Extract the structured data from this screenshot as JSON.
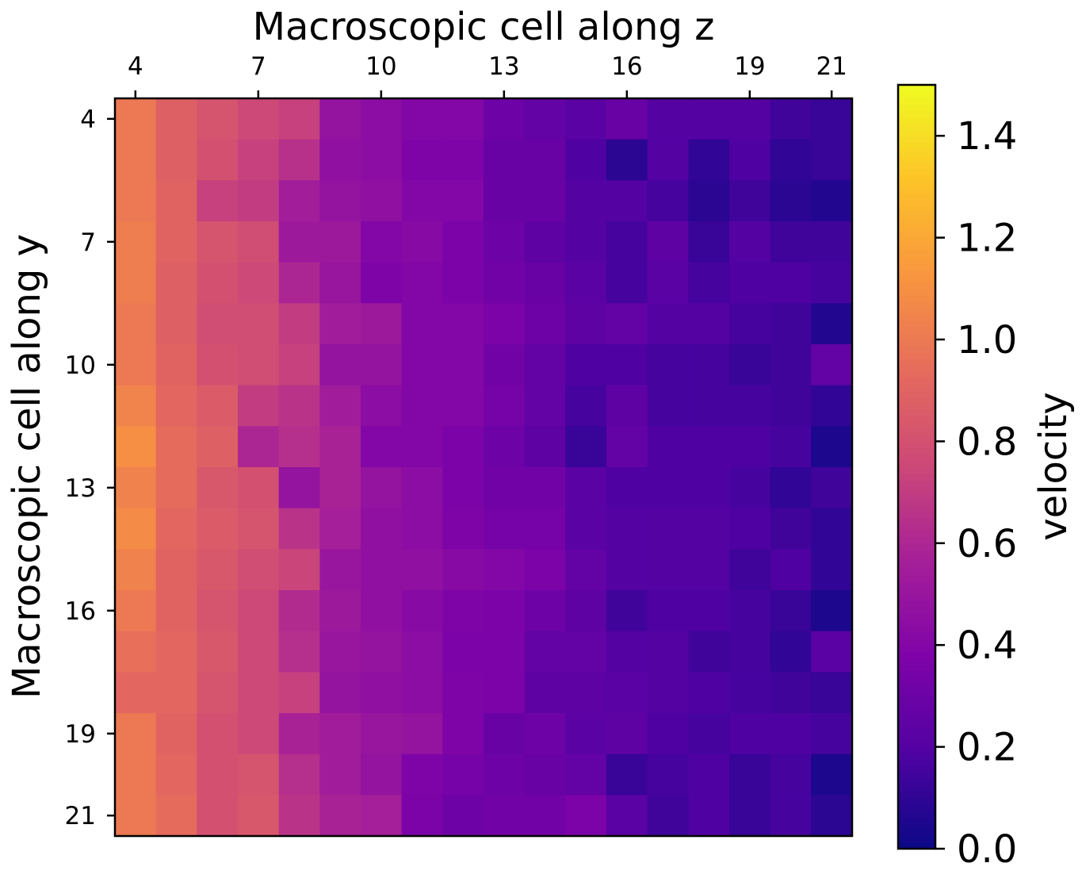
{
  "chart_data": {
    "type": "heatmap",
    "title": "",
    "xlabel": "Macroscopic cell along z",
    "ylabel": "Macroscopic cell along y",
    "x_range": [
      4,
      21
    ],
    "y_range": [
      4,
      21
    ],
    "x_ticks": [
      "4",
      "7",
      "10",
      "13",
      "16",
      "19",
      "21"
    ],
    "y_ticks": [
      "4",
      "7",
      "10",
      "13",
      "16",
      "19",
      "21"
    ],
    "x_axis_position": "top",
    "y_axis_inverted": true,
    "colormap": "plasma",
    "colorbar": {
      "label": "velocity",
      "range": [
        0.0,
        1.5
      ],
      "ticks": [
        "0.0",
        "0.2",
        "0.4",
        "0.6",
        "0.8",
        "1.0",
        "1.2",
        "1.4"
      ]
    },
    "values": [
      [
        1.0,
        0.88,
        0.82,
        0.76,
        0.72,
        0.48,
        0.44,
        0.4,
        0.4,
        0.3,
        0.26,
        0.22,
        0.28,
        0.2,
        0.2,
        0.2,
        0.14,
        0.12
      ],
      [
        1.0,
        0.88,
        0.8,
        0.72,
        0.65,
        0.46,
        0.44,
        0.38,
        0.38,
        0.28,
        0.28,
        0.18,
        0.08,
        0.2,
        0.1,
        0.18,
        0.1,
        0.12
      ],
      [
        1.0,
        0.9,
        0.72,
        0.7,
        0.55,
        0.48,
        0.46,
        0.4,
        0.4,
        0.28,
        0.28,
        0.2,
        0.2,
        0.16,
        0.08,
        0.14,
        0.08,
        0.06
      ],
      [
        1.02,
        0.9,
        0.82,
        0.78,
        0.52,
        0.52,
        0.4,
        0.42,
        0.36,
        0.3,
        0.24,
        0.2,
        0.16,
        0.24,
        0.12,
        0.2,
        0.14,
        0.14
      ],
      [
        1.02,
        0.88,
        0.8,
        0.76,
        0.6,
        0.5,
        0.38,
        0.4,
        0.36,
        0.32,
        0.28,
        0.22,
        0.16,
        0.22,
        0.16,
        0.18,
        0.18,
        0.16
      ],
      [
        1.0,
        0.88,
        0.78,
        0.78,
        0.7,
        0.54,
        0.52,
        0.4,
        0.4,
        0.36,
        0.3,
        0.24,
        0.26,
        0.2,
        0.2,
        0.16,
        0.14,
        0.06
      ],
      [
        1.0,
        0.9,
        0.8,
        0.78,
        0.72,
        0.48,
        0.48,
        0.4,
        0.4,
        0.32,
        0.26,
        0.18,
        0.18,
        0.16,
        0.16,
        0.12,
        0.14,
        0.26
      ],
      [
        1.05,
        0.92,
        0.86,
        0.7,
        0.66,
        0.54,
        0.44,
        0.4,
        0.4,
        0.34,
        0.26,
        0.16,
        0.24,
        0.16,
        0.16,
        0.16,
        0.14,
        0.1
      ],
      [
        1.1,
        0.94,
        0.88,
        0.6,
        0.64,
        0.58,
        0.4,
        0.4,
        0.36,
        0.3,
        0.24,
        0.12,
        0.26,
        0.18,
        0.18,
        0.18,
        0.16,
        0.04
      ],
      [
        1.04,
        0.94,
        0.84,
        0.8,
        0.48,
        0.58,
        0.48,
        0.44,
        0.36,
        0.32,
        0.32,
        0.22,
        0.18,
        0.18,
        0.18,
        0.16,
        0.1,
        0.14
      ],
      [
        1.08,
        0.92,
        0.86,
        0.82,
        0.66,
        0.56,
        0.46,
        0.44,
        0.38,
        0.34,
        0.34,
        0.22,
        0.2,
        0.2,
        0.2,
        0.18,
        0.14,
        0.1
      ],
      [
        1.04,
        0.9,
        0.84,
        0.78,
        0.74,
        0.5,
        0.46,
        0.46,
        0.42,
        0.4,
        0.36,
        0.26,
        0.2,
        0.2,
        0.2,
        0.14,
        0.18,
        0.1
      ],
      [
        1.0,
        0.9,
        0.82,
        0.76,
        0.62,
        0.52,
        0.46,
        0.42,
        0.38,
        0.36,
        0.3,
        0.24,
        0.14,
        0.18,
        0.18,
        0.16,
        0.12,
        0.04
      ],
      [
        0.96,
        0.92,
        0.84,
        0.76,
        0.64,
        0.5,
        0.48,
        0.44,
        0.36,
        0.36,
        0.26,
        0.26,
        0.2,
        0.2,
        0.14,
        0.16,
        0.1,
        0.22
      ],
      [
        0.92,
        0.92,
        0.82,
        0.76,
        0.72,
        0.48,
        0.46,
        0.44,
        0.38,
        0.36,
        0.24,
        0.24,
        0.22,
        0.2,
        0.18,
        0.16,
        0.14,
        0.12
      ],
      [
        1.0,
        0.9,
        0.8,
        0.76,
        0.58,
        0.54,
        0.5,
        0.48,
        0.38,
        0.28,
        0.3,
        0.22,
        0.24,
        0.18,
        0.16,
        0.18,
        0.18,
        0.16
      ],
      [
        1.0,
        0.92,
        0.8,
        0.82,
        0.64,
        0.54,
        0.48,
        0.38,
        0.34,
        0.3,
        0.28,
        0.26,
        0.12,
        0.16,
        0.18,
        0.12,
        0.16,
        0.04
      ],
      [
        1.0,
        0.94,
        0.8,
        0.84,
        0.66,
        0.58,
        0.56,
        0.36,
        0.3,
        0.32,
        0.32,
        0.36,
        0.22,
        0.14,
        0.18,
        0.12,
        0.16,
        0.08
      ]
    ]
  }
}
